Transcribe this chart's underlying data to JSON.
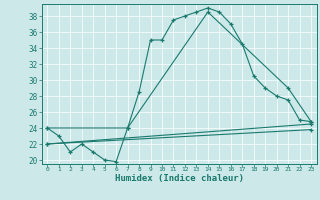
{
  "xlabel": "Humidex (Indice chaleur)",
  "xlim": [
    -0.5,
    23.5
  ],
  "ylim": [
    19.5,
    39.5
  ],
  "xticks": [
    0,
    1,
    2,
    3,
    4,
    5,
    6,
    7,
    8,
    9,
    10,
    11,
    12,
    13,
    14,
    15,
    16,
    17,
    18,
    19,
    20,
    21,
    22,
    23
  ],
  "yticks": [
    20,
    22,
    24,
    26,
    28,
    30,
    32,
    34,
    36,
    38
  ],
  "bg_color": "#cce8e8",
  "line_color": "#1a7a6e",
  "lines": [
    {
      "x": [
        0,
        1,
        2,
        3,
        4,
        5,
        6,
        7,
        8,
        9,
        10,
        11,
        12,
        13,
        14,
        15,
        16,
        17,
        18,
        19,
        20,
        21,
        22,
        23
      ],
      "y": [
        24,
        23,
        21,
        22,
        21,
        20,
        19.8,
        24,
        28.5,
        35,
        35,
        37.5,
        38,
        38.5,
        39,
        38.5,
        37,
        34.5,
        30.5,
        29,
        28,
        27.5,
        25,
        24.8
      ]
    },
    {
      "x": [
        0,
        7,
        14,
        21,
        23
      ],
      "y": [
        24,
        24,
        38.5,
        29,
        24.8
      ]
    },
    {
      "x": [
        0,
        23
      ],
      "y": [
        22,
        24.5
      ]
    },
    {
      "x": [
        0,
        23
      ],
      "y": [
        22,
        23.8
      ]
    }
  ]
}
